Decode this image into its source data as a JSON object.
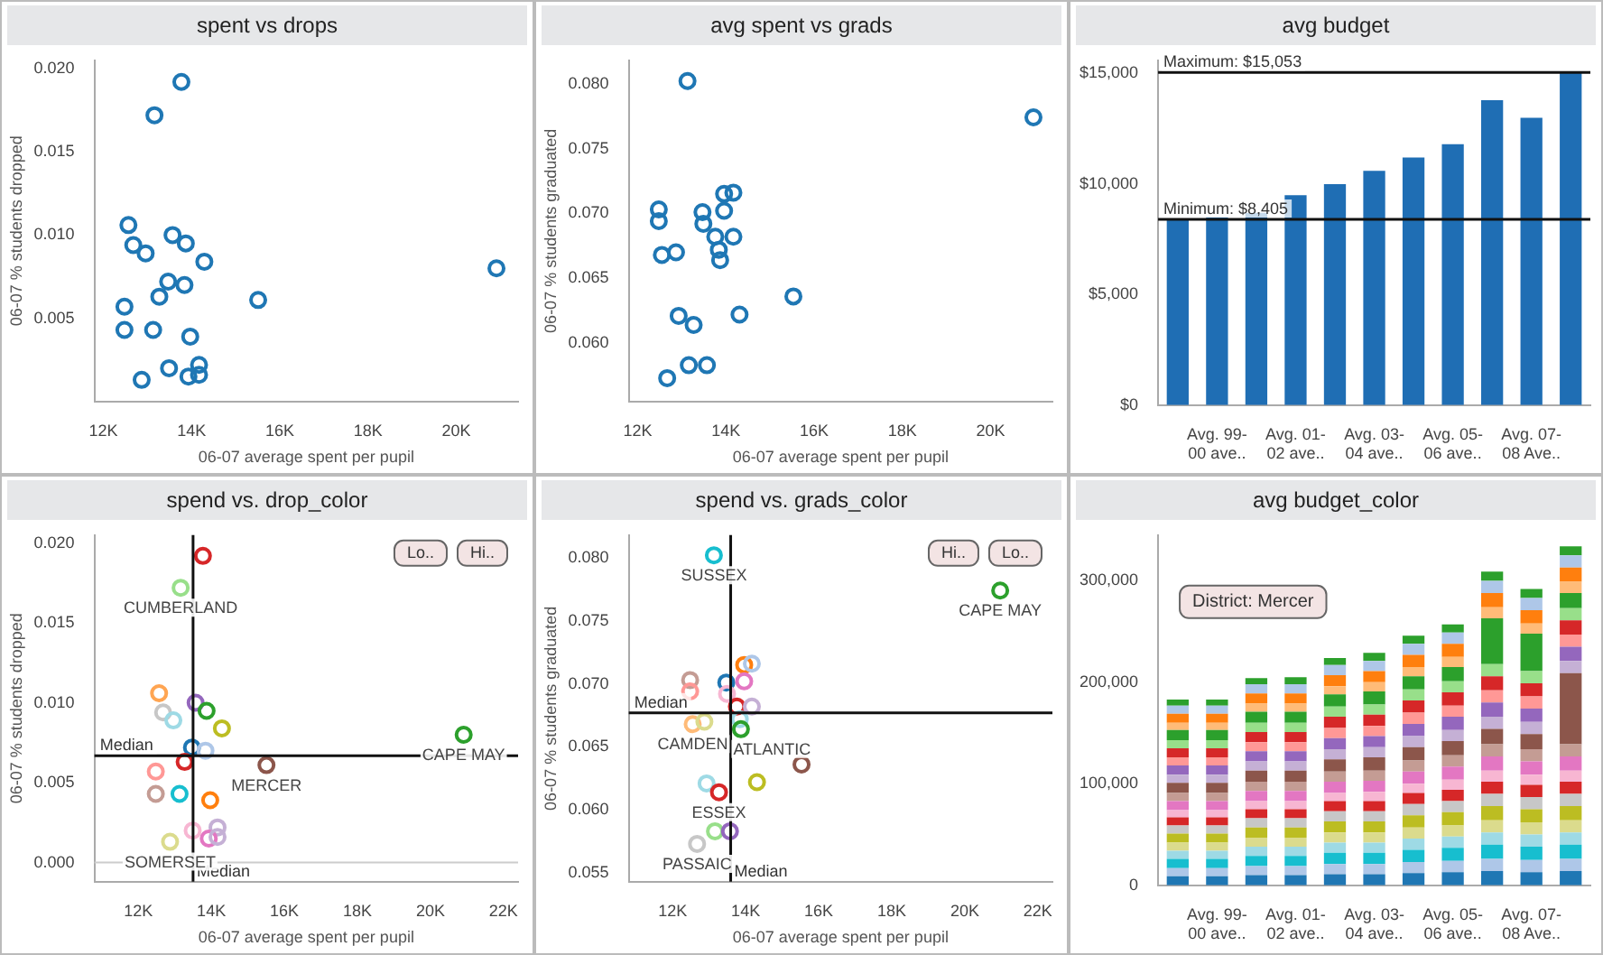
{
  "chart_data": [
    {
      "type": "scatter",
      "title": "spent vs drops",
      "xlabel": "06-07 average spent per pupil",
      "ylabel": "06-07 % students dropped",
      "marker": "circle",
      "x": [
        13770,
        13160,
        12570,
        12680,
        12960,
        13570,
        13870,
        14290,
        20910,
        13470,
        13840,
        13270,
        15510,
        12480,
        12480,
        13130,
        13970,
        13490,
        14170,
        13930,
        14170,
        12870
      ],
      "values": [
        0.0192,
        0.0172,
        0.0106,
        0.0094,
        0.0089,
        0.01,
        0.0095,
        0.0084,
        0.008,
        0.0072,
        0.007,
        0.0063,
        0.0061,
        0.0057,
        0.0043,
        0.0043,
        0.0039,
        0.002,
        0.0022,
        0.0015,
        0.0016,
        0.0013
      ],
      "color": "#1f77b4",
      "xlim": [
        11800,
        21400
      ],
      "xticks": [
        {
          "value": 12000,
          "label": "12K"
        },
        {
          "value": 14000,
          "label": "14K"
        },
        {
          "value": 16000,
          "label": "16K"
        },
        {
          "value": 18000,
          "label": "18K"
        },
        {
          "value": 20000,
          "label": "20K"
        }
      ],
      "ylim": [
        0,
        0.0205
      ],
      "yticks": [
        {
          "value": 0.005,
          "label": "0.005"
        },
        {
          "value": 0.01,
          "label": "0.010"
        },
        {
          "value": 0.015,
          "label": "0.015"
        },
        {
          "value": 0.02,
          "label": "0.020"
        }
      ]
    },
    {
      "type": "scatter",
      "title": "avg spent vs grads",
      "xlabel": "06-07 average spent per pupil",
      "ylabel": "06-07 % students graduated",
      "marker": "circle",
      "x": [
        13130,
        20970,
        12480,
        12480,
        12550,
        12870,
        13470,
        13490,
        13960,
        14170,
        13960,
        13760,
        13840,
        13870,
        14170,
        15530,
        12930,
        13270,
        14310,
        13160,
        13570,
        12670
      ],
      "values": [
        0.0802,
        0.0774,
        0.0703,
        0.0694,
        0.0668,
        0.067,
        0.0701,
        0.0692,
        0.0715,
        0.0716,
        0.0702,
        0.0682,
        0.0672,
        0.0664,
        0.0682,
        0.0636,
        0.0621,
        0.0614,
        0.0622,
        0.0583,
        0.0583,
        0.0573
      ],
      "color": "#1f77b4",
      "xlim": [
        11800,
        21400
      ],
      "xticks": [
        {
          "value": 12000,
          "label": "12K"
        },
        {
          "value": 14000,
          "label": "14K"
        },
        {
          "value": 16000,
          "label": "16K"
        },
        {
          "value": 18000,
          "label": "18K"
        },
        {
          "value": 20000,
          "label": "20K"
        }
      ],
      "ylim": [
        0.0555,
        0.0818
      ],
      "yticks": [
        {
          "value": 0.06,
          "label": "0.060"
        },
        {
          "value": 0.065,
          "label": "0.065"
        },
        {
          "value": 0.07,
          "label": "0.070"
        },
        {
          "value": 0.075,
          "label": "0.075"
        },
        {
          "value": 0.08,
          "label": "0.080"
        }
      ]
    },
    {
      "type": "bar",
      "title": "avg budget",
      "categories": [
        null,
        "Avg. 99-00 ave..",
        null,
        "Avg. 01-02 ave..",
        null,
        "Avg. 03-04 ave..",
        null,
        "Avg. 05-06 ave..",
        null,
        "Avg. 07-08 Ave..",
        null
      ],
      "values": [
        8400,
        8500,
        8700,
        9500,
        10000,
        10600,
        11200,
        11800,
        13800,
        13000,
        15100
      ],
      "color": "#1f6eb4",
      "ylim": [
        0,
        15600
      ],
      "yticks": [
        {
          "value": 0,
          "label": "$0"
        },
        {
          "value": 5000,
          "label": "$5,000"
        },
        {
          "value": 10000,
          "label": "$10,000"
        },
        {
          "value": 15000,
          "label": "$15,000"
        }
      ],
      "ref_lines": [
        {
          "axis": "y",
          "value": 15053,
          "label": "Maximum: $15,053"
        },
        {
          "axis": "y",
          "value": 8405,
          "label": "Minimum: $8,405"
        }
      ]
    },
    {
      "type": "scatter",
      "title": "spend vs. drop_color",
      "xlabel": "06-07 average spent per pupil",
      "ylabel": "06-07 % students dropped",
      "marker": "circle",
      "x": [
        13770,
        13160,
        12570,
        12680,
        12960,
        13570,
        13870,
        14290,
        20910,
        13470,
        13840,
        13270,
        15510,
        12480,
        12480,
        13130,
        13970,
        13490,
        14170,
        13930,
        14170,
        12870
      ],
      "values": [
        0.0192,
        0.0172,
        0.0106,
        0.0094,
        0.0089,
        0.01,
        0.0095,
        0.0084,
        0.008,
        0.0072,
        0.007,
        0.0063,
        0.0061,
        0.0057,
        0.0043,
        0.0043,
        0.0039,
        0.002,
        0.0022,
        0.0015,
        0.0016,
        0.0013
      ],
      "colors": [
        "#d62728",
        "#98df8a",
        "#ffa552",
        "#c7c7c7",
        "#9edae5",
        "#9467bd",
        "#2ca02c",
        "#bcbd22",
        "#2ca02c",
        "#1f77b4",
        "#aec7e8",
        "#d62728",
        "#8c564b",
        "#ff9896",
        "#c49c94",
        "#17becf",
        "#ff7f0e",
        "#f7b6d2",
        "#c5b0d5",
        "#e377c2",
        "#c5b0d5",
        "#dbdb8d"
      ],
      "xlim": [
        10800,
        22400
      ],
      "xticks": [
        {
          "value": 12000,
          "label": "12K"
        },
        {
          "value": 14000,
          "label": "14K"
        },
        {
          "value": 16000,
          "label": "16K"
        },
        {
          "value": 18000,
          "label": "18K"
        },
        {
          "value": 20000,
          "label": "20K"
        },
        {
          "value": 22000,
          "label": "22K"
        }
      ],
      "ylim": [
        -0.0012,
        0.0205
      ],
      "yticks": [
        {
          "value": 0,
          "label": "0.000"
        },
        {
          "value": 0.005,
          "label": "0.005"
        },
        {
          "value": 0.01,
          "label": "0.010"
        },
        {
          "value": 0.015,
          "label": "0.015"
        },
        {
          "value": 0.02,
          "label": "0.020"
        }
      ],
      "ref_lines": [
        {
          "axis": "y",
          "value": 0,
          "color": "#cccccc"
        },
        {
          "axis": "x",
          "value": 13500,
          "label": "Median"
        },
        {
          "axis": "y",
          "value": 0.00668,
          "label": "Median"
        }
      ],
      "annotations": [
        {
          "text": "CUMBERLAND",
          "x": 13160,
          "y": 0.0172
        },
        {
          "text": "MERCER",
          "x": 15510,
          "y": 0.0061
        },
        {
          "text": "CAPE MAY",
          "x": 20910,
          "y": 0.008
        },
        {
          "text": "SOMERSET",
          "x": 12870,
          "y": 0.0013
        },
        "Hi..",
        "Lo.."
      ]
    },
    {
      "type": "scatter",
      "title": "spend vs. grads_color",
      "xlabel": "06-07 average spent per pupil",
      "ylabel": "06-07 % students graduated",
      "marker": "circle",
      "x": [
        13130,
        20970,
        12480,
        12480,
        12550,
        12870,
        13470,
        13490,
        13960,
        14170,
        13960,
        13760,
        13840,
        13870,
        14170,
        15530,
        12930,
        13270,
        14310,
        13160,
        13570,
        12670
      ],
      "values": [
        0.0802,
        0.0774,
        0.0703,
        0.0694,
        0.0668,
        0.067,
        0.0701,
        0.0692,
        0.0715,
        0.0716,
        0.0702,
        0.0682,
        0.0672,
        0.0664,
        0.0682,
        0.0636,
        0.0621,
        0.0614,
        0.0622,
        0.0583,
        0.0583,
        0.0573
      ],
      "colors": [
        "#17becf",
        "#2ca02c",
        "#c49c94",
        "#ff9896",
        "#ffbb78",
        "#dbdb8d",
        "#1f77b4",
        "#f7b6d2",
        "#ff7f0e",
        "#aec7e8",
        "#e377c2",
        "#d62728",
        "#9edae5",
        "#2ca02c",
        "#c5b0d5",
        "#8c564b",
        "#9edae5",
        "#d62728",
        "#bcbd22",
        "#98df8a",
        "#9467bd",
        "#c7c7c7"
      ],
      "xlim": [
        10800,
        22400
      ],
      "xticks": [
        {
          "value": 12000,
          "label": "12K"
        },
        {
          "value": 14000,
          "label": "14K"
        },
        {
          "value": 16000,
          "label": "16K"
        },
        {
          "value": 18000,
          "label": "18K"
        },
        {
          "value": 20000,
          "label": "20K"
        },
        {
          "value": 22000,
          "label": "22K"
        }
      ],
      "ylim": [
        0.0543,
        0.0818
      ],
      "yticks": [
        {
          "value": 0.055,
          "label": "0.055"
        },
        {
          "value": 0.06,
          "label": "0.060"
        },
        {
          "value": 0.065,
          "label": "0.065"
        },
        {
          "value": 0.07,
          "label": "0.070"
        },
        {
          "value": 0.075,
          "label": "0.075"
        },
        {
          "value": 0.08,
          "label": "0.080"
        }
      ],
      "ref_lines": [
        {
          "axis": "x",
          "value": 13590,
          "label": "Median"
        },
        {
          "axis": "y",
          "value": 0.0677,
          "label": "Median"
        }
      ],
      "annotations": [
        {
          "text": "SUSSEX",
          "x": 13130,
          "y": 0.0802
        },
        {
          "text": "CAPE MAY",
          "x": 20970,
          "y": 0.0774
        },
        {
          "text": "CAMDEN",
          "x": 12550,
          "y": 0.0668
        },
        {
          "text": "ATLANTIC",
          "x": 13870,
          "y": 0.0664
        },
        {
          "text": "ESSEX",
          "x": 13270,
          "y": 0.0614
        },
        {
          "text": "PASSAIC",
          "x": 12670,
          "y": 0.0573
        },
        "Lo..",
        "Hi.."
      ]
    },
    {
      "type": "bar",
      "title": "avg budget_color",
      "stacked": true,
      "categories": [
        null,
        "Avg. 99-00 ave..",
        null,
        "Avg. 01-02 ave..",
        null,
        "Avg. 03-04 ave..",
        null,
        "Avg. 05-06 ave..",
        null,
        "Avg. 07-08 Ave..",
        null
      ],
      "ylim": [
        0,
        345000
      ],
      "yticks": [
        {
          "value": 0,
          "label": "0"
        },
        {
          "value": 100000,
          "label": "100,000"
        },
        {
          "value": 200000,
          "label": "200,000"
        },
        {
          "value": 300000,
          "label": "300,000"
        }
      ],
      "annotations": [
        "District: Mercer"
      ],
      "series": [
        {
          "color": "#1f77b4",
          "values": [
            9000,
            9000,
            10000,
            10000,
            11000,
            11000,
            12000,
            13000,
            14000,
            13000,
            14000
          ]
        },
        {
          "color": "#aec7e8",
          "values": [
            8000,
            8000,
            9000,
            9000,
            10000,
            10000,
            11000,
            11000,
            12000,
            12000,
            12000
          ]
        },
        {
          "color": "#17becf",
          "values": [
            9000,
            9000,
            10000,
            10000,
            11000,
            11000,
            12000,
            13000,
            14000,
            13000,
            14000
          ]
        },
        {
          "color": "#9edae5",
          "values": [
            8000,
            8000,
            9000,
            9000,
            10000,
            10000,
            11000,
            11000,
            12000,
            12000,
            12000
          ]
        },
        {
          "color": "#dbdb8d",
          "values": [
            8000,
            8000,
            9000,
            9000,
            10000,
            10000,
            11000,
            11000,
            12000,
            12000,
            12000
          ]
        },
        {
          "color": "#bcbd22",
          "values": [
            9000,
            9000,
            10000,
            10000,
            11000,
            11000,
            12000,
            13000,
            14000,
            13000,
            14000
          ]
        },
        {
          "color": "#c7c7c7",
          "values": [
            8000,
            8000,
            9000,
            9000,
            10000,
            10000,
            11000,
            11000,
            12000,
            12000,
            12000
          ]
        },
        {
          "color": "#d62728",
          "values": [
            8000,
            8000,
            9000,
            9000,
            10000,
            10000,
            11000,
            11000,
            12000,
            12000,
            12000
          ]
        },
        {
          "color": "#f7b6d2",
          "values": [
            7000,
            7000,
            8000,
            8000,
            8000,
            9000,
            9000,
            10000,
            11000,
            10000,
            11000
          ]
        },
        {
          "color": "#e377c2",
          "values": [
            9000,
            9000,
            10000,
            10000,
            11000,
            11000,
            12000,
            13000,
            14000,
            13000,
            14000
          ]
        },
        {
          "color": "#c49c94",
          "values": [
            8000,
            8000,
            9000,
            9000,
            10000,
            10000,
            11000,
            11000,
            12000,
            12000,
            12000
          ]
        },
        {
          "color": "#8c564b",
          "values": [
            10000,
            10000,
            11000,
            11000,
            12000,
            13000,
            13000,
            14000,
            15000,
            15000,
            70000
          ]
        },
        {
          "color": "#c5b0d5",
          "values": [
            8000,
            8000,
            9000,
            9000,
            10000,
            10000,
            11000,
            11000,
            12000,
            12000,
            12000
          ]
        },
        {
          "color": "#9467bd",
          "values": [
            9000,
            9000,
            10000,
            10000,
            11000,
            11000,
            12000,
            13000,
            14000,
            13000,
            14000
          ]
        },
        {
          "color": "#ff9896",
          "values": [
            8000,
            8000,
            9000,
            9000,
            10000,
            10000,
            11000,
            11000,
            12000,
            12000,
            12000
          ]
        },
        {
          "color": "#d62728",
          "values": [
            9000,
            9000,
            10000,
            10000,
            11000,
            11000,
            12000,
            13000,
            14000,
            13000,
            14000
          ]
        },
        {
          "color": "#98df8a",
          "values": [
            8000,
            8000,
            9000,
            9000,
            10000,
            10000,
            11000,
            11000,
            12000,
            12000,
            12000
          ]
        },
        {
          "color": "#2ca02c",
          "values": [
            10000,
            10000,
            11000,
            11000,
            12000,
            13000,
            13000,
            14000,
            45000,
            37000,
            15000
          ]
        },
        {
          "color": "#ffbb78",
          "values": [
            7000,
            7000,
            8000,
            8000,
            8000,
            9000,
            9000,
            10000,
            11000,
            10000,
            11000
          ]
        },
        {
          "color": "#ff7f0e",
          "values": [
            9000,
            9000,
            10000,
            10000,
            11000,
            11000,
            12000,
            13000,
            14000,
            13000,
            14000
          ]
        },
        {
          "color": "#aec7e8",
          "values": [
            8000,
            8000,
            9000,
            9000,
            10000,
            10000,
            11000,
            11000,
            12000,
            12000,
            12000
          ]
        },
        {
          "color": "#2ca02c",
          "values": [
            6000,
            6000,
            6000,
            7000,
            7000,
            8000,
            8000,
            8000,
            9000,
            9000,
            9000
          ]
        }
      ]
    }
  ]
}
